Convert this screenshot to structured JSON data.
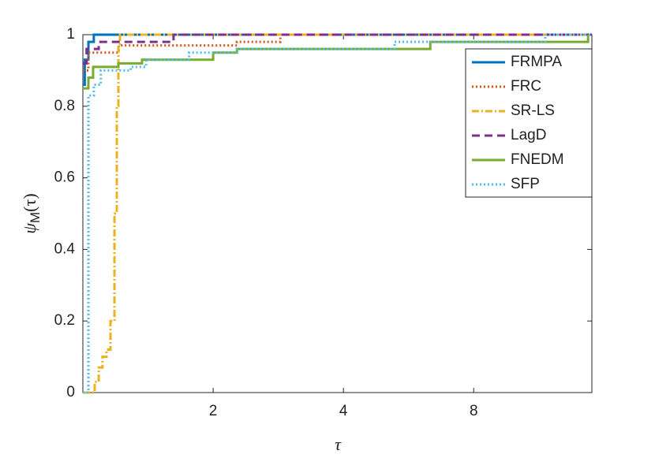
{
  "chart_data": {
    "type": "step",
    "x_label": "τ",
    "y_label_parts": [
      "ψ",
      "M",
      "(τ)"
    ],
    "xlim": [
      1,
      15
    ],
    "xscale": "log2",
    "xticks": [
      2,
      4,
      8
    ],
    "ylim": [
      0,
      1
    ],
    "yticks": [
      0,
      0.2,
      0.4,
      0.6,
      0.8,
      1
    ],
    "legend": "upper right",
    "series": [
      {
        "name": "FRMPA",
        "color": "#0072bd",
        "dash": "solid",
        "x": [
          1,
          1.01,
          1.03,
          1.06,
          15
        ],
        "values": [
          0.86,
          0.93,
          0.98,
          1,
          1
        ]
      },
      {
        "name": "FRC",
        "color": "#d95319",
        "dash": "dotted",
        "x": [
          1,
          1.03,
          1.21,
          2.27,
          2.86
        ],
        "values": [
          0.9,
          0.95,
          0.97,
          0.98,
          1
        ]
      },
      {
        "name": "SR-LS",
        "color": "#edb120",
        "dash": "dashdot",
        "x": [
          1,
          1.065,
          1.088,
          1.11,
          1.134,
          1.158,
          1.183,
          1.198,
          1.208,
          1.218,
          15
        ],
        "values": [
          0,
          0.03,
          0.07,
          0.1,
          0.12,
          0.2,
          0.5,
          0.8,
          0.97,
          1,
          1
        ]
      },
      {
        "name": "LagD",
        "color": "#7e2f8e",
        "dash": "dashed",
        "x": [
          1,
          1.02,
          1.088,
          1.62,
          15
        ],
        "values": [
          0.92,
          0.96,
          0.98,
          1,
          1
        ]
      },
      {
        "name": "FNEDM",
        "color": "#77ac30",
        "dash": "solid",
        "x": [
          1,
          1.03,
          1.056,
          1.208,
          1.37,
          2,
          2.27,
          6.35,
          14.7
        ],
        "values": [
          0.85,
          0.88,
          0.91,
          0.92,
          0.93,
          0.95,
          0.96,
          0.98,
          1
        ]
      },
      {
        "name": "SFP",
        "color": "#4dbeee",
        "dash": "dotted",
        "x": [
          1,
          1.03,
          1.06,
          1.1,
          1.29,
          1.4,
          1.76,
          2.27,
          5.25,
          11.7,
          15
        ],
        "values": [
          0,
          0.83,
          0.86,
          0.9,
          0.91,
          0.93,
          0.95,
          0.96,
          0.98,
          1,
          1
        ]
      }
    ]
  }
}
